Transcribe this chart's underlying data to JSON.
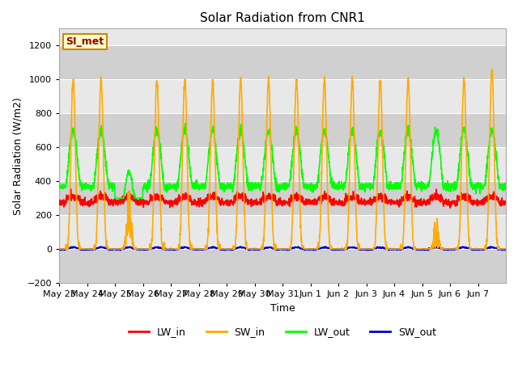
{
  "title": "Solar Radiation from CNR1",
  "xlabel": "Time",
  "ylabel": "Solar Radiation (W/m2)",
  "ylim": [
    -200,
    1300
  ],
  "yticks": [
    -200,
    0,
    200,
    400,
    600,
    800,
    1000,
    1200
  ],
  "fig_bg_color": "#ffffff",
  "plot_bg_color": "#e8e8e8",
  "stripe_color": "#d0d0d0",
  "x_tick_labels": [
    "May 23",
    "May 24",
    "May 25",
    "May 26",
    "May 27",
    "May 28",
    "May 29",
    "May 30",
    "May 31",
    "Jun 1",
    "Jun 2",
    "Jun 3",
    "Jun 4",
    "Jun 5",
    "Jun 6",
    "Jun 7"
  ],
  "annotation_text": "SI_met",
  "annotation_bg": "#ffffcc",
  "annotation_border": "#cc8800",
  "annotation_text_color": "#990000",
  "lw_in_color": "#ff0000",
  "sw_in_color": "#ffaa00",
  "lw_out_color": "#00ff00",
  "sw_out_color": "#0000cc",
  "line_width": 1.2,
  "legend_labels": [
    "LW_in",
    "SW_in",
    "LW_out",
    "SW_out"
  ]
}
